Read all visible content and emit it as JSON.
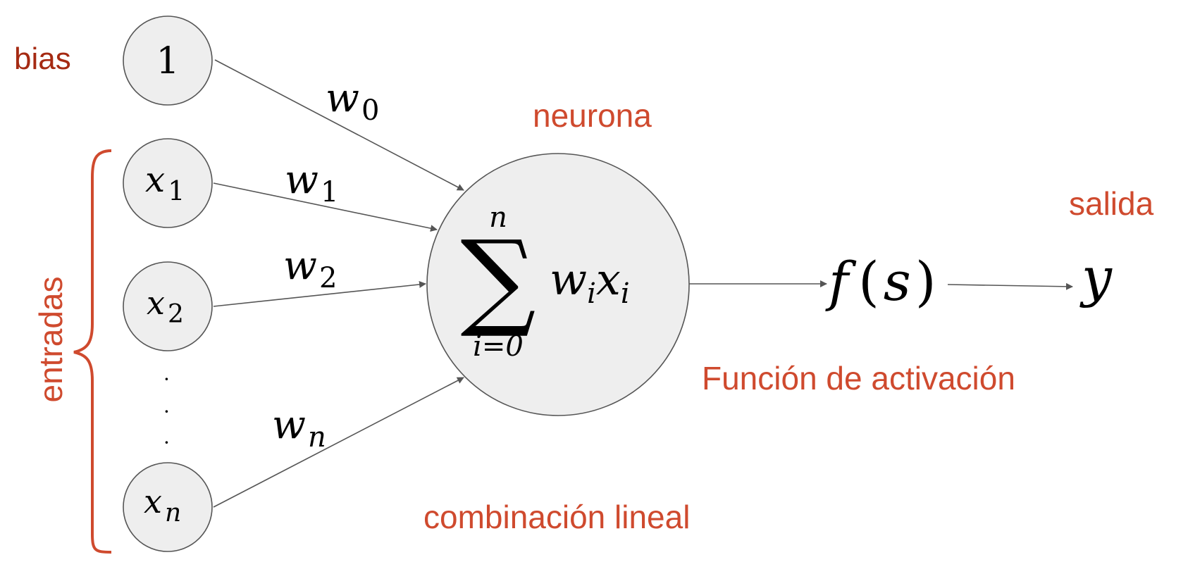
{
  "colors": {
    "label_primary": "#cf4a2e",
    "label_bias": "#a52a12",
    "node_fill": "#eeeeee",
    "stroke": "#555555"
  },
  "labels": {
    "bias": "bias",
    "entradas": "entradas",
    "neurona": "neurona",
    "salida": "salida",
    "activacion": "Función de activación",
    "combinacion": "combinación lineal"
  },
  "inputs": {
    "bias_node": "1",
    "x1": {
      "base": "x",
      "sub": "1"
    },
    "x2": {
      "base": "x",
      "sub": "2"
    },
    "xn": {
      "base": "x",
      "sub": "n"
    },
    "ellipsis": "·"
  },
  "weights": {
    "w0": {
      "base": "w",
      "sub": "0"
    },
    "w1": {
      "base": "w",
      "sub": "1"
    },
    "w2": {
      "base": "w",
      "sub": "2"
    },
    "wn": {
      "base": "w",
      "sub": "n"
    }
  },
  "neuron": {
    "sigma": "∑",
    "upper": "n",
    "lower": "i=0",
    "term": {
      "w": "w",
      "wsub": "i",
      "x": "x",
      "xsub": "i"
    }
  },
  "activation": {
    "f": "f",
    "lparen": "(",
    "s": "s",
    "rparen": ")"
  },
  "output": "y"
}
